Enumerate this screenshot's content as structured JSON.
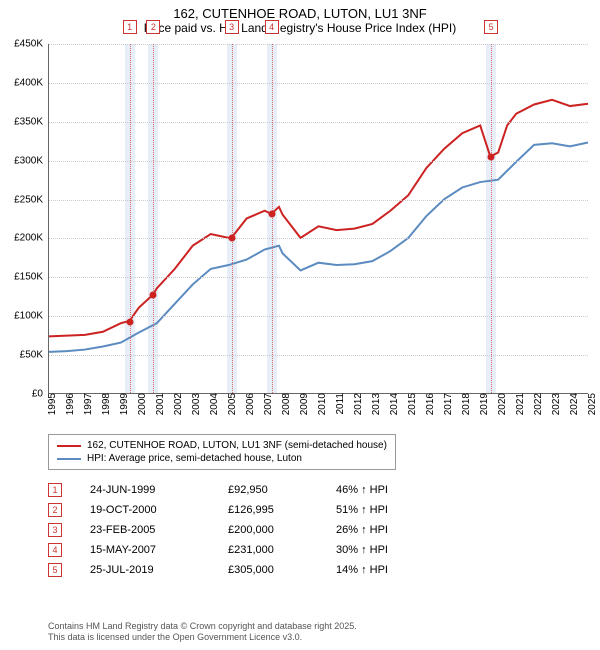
{
  "title": "162, CUTENHOE ROAD, LUTON, LU1 3NF",
  "subtitle": "Price paid vs. HM Land Registry's House Price Index (HPI)",
  "chart": {
    "type": "line",
    "background_color": "#ffffff",
    "grid_color": "#cccccc",
    "x": {
      "min": 1995,
      "max": 2025,
      "tick_step": 1
    },
    "y": {
      "min": 0,
      "max": 450000,
      "tick_step": 50000,
      "prefix": "£",
      "suffix": "K",
      "divisor": 1000
    },
    "vband_color": "#e8eef7",
    "vline_color": "#d36b6b",
    "marker_border": "#cc3333",
    "marker_text": "#cc3333",
    "series": [
      {
        "name": "162, CUTENHOE ROAD, LUTON, LU1 3NF (semi-detached house)",
        "color": "#cc2222",
        "width": 2,
        "data": [
          [
            1995,
            73000
          ],
          [
            1996,
            74000
          ],
          [
            1997,
            75000
          ],
          [
            1998,
            79000
          ],
          [
            1999,
            90000
          ],
          [
            1999.48,
            92950
          ],
          [
            2000,
            110000
          ],
          [
            2000.8,
            126995
          ],
          [
            2001,
            135000
          ],
          [
            2002,
            160000
          ],
          [
            2003,
            190000
          ],
          [
            2004,
            205000
          ],
          [
            2005,
            200000
          ],
          [
            2005.15,
            200000
          ],
          [
            2006,
            225000
          ],
          [
            2007,
            235000
          ],
          [
            2007.37,
            231000
          ],
          [
            2007.8,
            240000
          ],
          [
            2008,
            230000
          ],
          [
            2009,
            200000
          ],
          [
            2010,
            215000
          ],
          [
            2011,
            210000
          ],
          [
            2012,
            212000
          ],
          [
            2013,
            218000
          ],
          [
            2014,
            235000
          ],
          [
            2015,
            255000
          ],
          [
            2016,
            290000
          ],
          [
            2017,
            315000
          ],
          [
            2018,
            335000
          ],
          [
            2019,
            345000
          ],
          [
            2019.56,
            305000
          ],
          [
            2020,
            310000
          ],
          [
            2020.5,
            345000
          ],
          [
            2021,
            360000
          ],
          [
            2022,
            372000
          ],
          [
            2023,
            378000
          ],
          [
            2024,
            370000
          ],
          [
            2025,
            373000
          ]
        ]
      },
      {
        "name": "HPI: Average price, semi-detached house, Luton",
        "color": "#5b8bc0",
        "width": 2,
        "data": [
          [
            1995,
            53000
          ],
          [
            1996,
            54000
          ],
          [
            1997,
            56000
          ],
          [
            1998,
            60000
          ],
          [
            1999,
            65000
          ],
          [
            2000,
            78000
          ],
          [
            2001,
            90000
          ],
          [
            2002,
            115000
          ],
          [
            2003,
            140000
          ],
          [
            2004,
            160000
          ],
          [
            2005,
            165000
          ],
          [
            2006,
            172000
          ],
          [
            2007,
            185000
          ],
          [
            2007.8,
            190000
          ],
          [
            2008,
            180000
          ],
          [
            2009,
            158000
          ],
          [
            2010,
            168000
          ],
          [
            2011,
            165000
          ],
          [
            2012,
            166000
          ],
          [
            2013,
            170000
          ],
          [
            2014,
            183000
          ],
          [
            2015,
            200000
          ],
          [
            2016,
            228000
          ],
          [
            2017,
            250000
          ],
          [
            2018,
            265000
          ],
          [
            2019,
            272000
          ],
          [
            2020,
            275000
          ],
          [
            2021,
            298000
          ],
          [
            2022,
            320000
          ],
          [
            2023,
            322000
          ],
          [
            2024,
            318000
          ],
          [
            2025,
            323000
          ]
        ]
      }
    ],
    "sales": [
      {
        "n": "1",
        "year": 1999.48,
        "price": 92950,
        "date": "24-JUN-1999",
        "price_label": "£92,950",
        "hpi_label": "46% ↑ HPI"
      },
      {
        "n": "2",
        "year": 2000.8,
        "price": 126995,
        "date": "19-OCT-2000",
        "price_label": "£126,995",
        "hpi_label": "51% ↑ HPI"
      },
      {
        "n": "3",
        "year": 2005.15,
        "price": 200000,
        "date": "23-FEB-2005",
        "price_label": "£200,000",
        "hpi_label": "26% ↑ HPI"
      },
      {
        "n": "4",
        "year": 2007.37,
        "price": 231000,
        "date": "15-MAY-2007",
        "price_label": "£231,000",
        "hpi_label": "30% ↑ HPI"
      },
      {
        "n": "5",
        "year": 2019.56,
        "price": 305000,
        "date": "25-JUL-2019",
        "price_label": "£305,000",
        "hpi_label": "14% ↑ HPI"
      }
    ]
  },
  "legend": {
    "row0": "162, CUTENHOE ROAD, LUTON, LU1 3NF (semi-detached house)",
    "row1": "HPI: Average price, semi-detached house, Luton"
  },
  "footnote": {
    "line1": "Contains HM Land Registry data © Crown copyright and database right 2025.",
    "line2": "This data is licensed under the Open Government Licence v3.0."
  }
}
